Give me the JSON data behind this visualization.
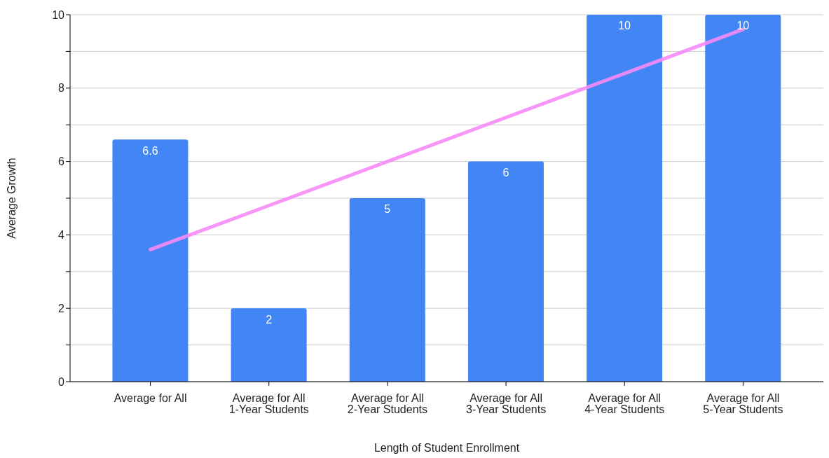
{
  "chart_data": {
    "type": "bar",
    "xlabel": "Length of Student Enrollment",
    "ylabel": "Average Growth",
    "categories": [
      "Average for All",
      "Average for All 1-Year Students",
      "Average for All 2-Year Students",
      "Average for All 3-Year Students",
      "Average for All 4-Year Students",
      "Average for All 5-Year Students"
    ],
    "series": [
      {
        "color": "#4285f4",
        "values": [
          6.6,
          2,
          5,
          6,
          10,
          10
        ],
        "value_labels": [
          "6.6",
          "2",
          "5",
          "6",
          "10",
          "10"
        ]
      },
      {
        "type": "line",
        "color": "#f78af7",
        "values": [
          3.6,
          4.8,
          6,
          7.2,
          8.4,
          9.6
        ]
      }
    ],
    "ylim": [
      0,
      10
    ],
    "yticks": [
      0,
      {
        "value": 1,
        "label": null
      },
      2,
      {
        "value": 3,
        "label": null
      },
      4,
      {
        "value": 5,
        "label": null
      },
      6,
      {
        "value": 7,
        "label": null
      },
      8,
      {
        "value": 9,
        "label": null
      },
      10
    ],
    "grid": "y",
    "legend": false
  }
}
